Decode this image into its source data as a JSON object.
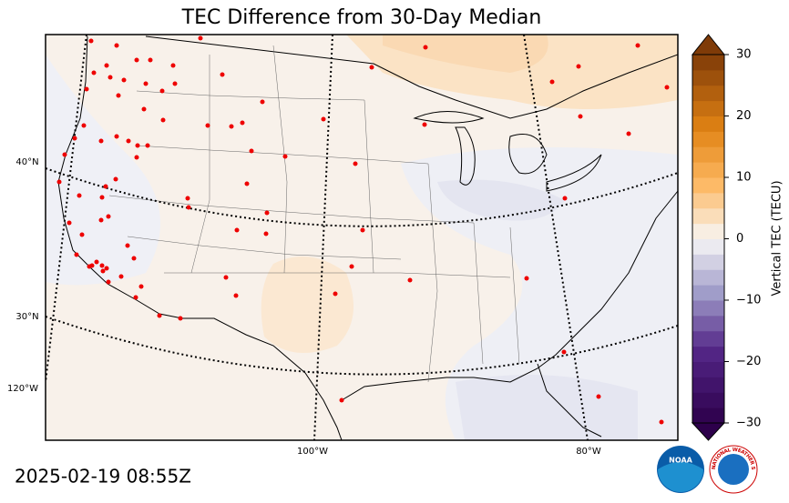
{
  "title": "TEC Difference from 30-Day Median",
  "timestamp": "2025-02-19 08:55Z",
  "graticule": {
    "lat_labels": [
      "40°N",
      "30°N"
    ],
    "lon_labels": [
      "120°W",
      "100°W",
      "80°W"
    ]
  },
  "colorbar": {
    "label": "Vertical TEC (TECU)",
    "lim": [
      -30,
      30
    ],
    "ticks": [
      {
        "value": -30,
        "label": "−30"
      },
      {
        "value": -20,
        "label": "−20"
      },
      {
        "value": -10,
        "label": "−10"
      },
      0,
      10,
      20,
      30
    ]
  },
  "logos": {
    "noaa": "NOAA",
    "nws": "NATIONAL WEATHER SERVICE"
  }
}
